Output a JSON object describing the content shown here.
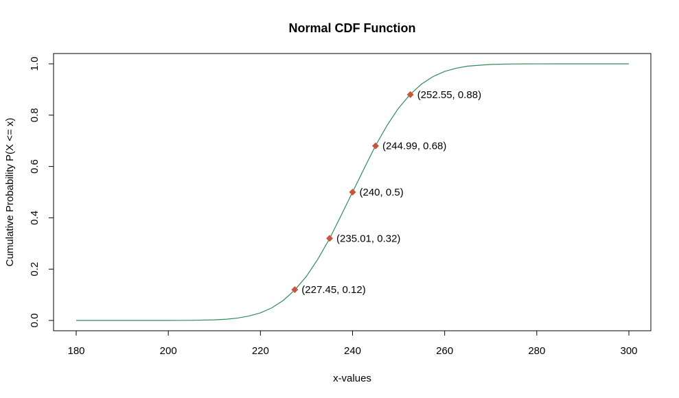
{
  "chart_data": {
    "type": "line",
    "title": "Normal CDF Function",
    "xlabel": "x-values",
    "ylabel": "Cumulative Probability P(X <= x)",
    "xlim": [
      180,
      300
    ],
    "ylim": [
      0,
      1
    ],
    "xticks": [
      180,
      200,
      220,
      240,
      260,
      280,
      300
    ],
    "yticks": [
      0.0,
      0.2,
      0.4,
      0.6,
      0.8,
      1.0
    ],
    "ytick_labels": [
      "0.0",
      "0.2",
      "0.4",
      "0.6",
      "0.8",
      "1.0"
    ],
    "grid": false,
    "distribution": {
      "mean": 240,
      "sd": 10.6
    },
    "series": [
      {
        "line_color": "#2e8b57",
        "x": [
          180,
          185,
          190,
          195,
          200,
          205,
          210,
          212.5,
          215,
          217.5,
          220,
          222.5,
          225,
          227.5,
          230,
          232.5,
          235,
          237.5,
          240,
          242.5,
          245,
          247.5,
          250,
          252.5,
          255,
          257.5,
          260,
          262.5,
          265,
          270,
          275,
          280,
          285,
          290,
          295,
          300
        ],
        "y": [
          0.0,
          0.0,
          0.0,
          0.0,
          0.0,
          0.0005,
          0.0023,
          0.0047,
          0.0092,
          0.0171,
          0.0295,
          0.0494,
          0.0786,
          0.1195,
          0.1724,
          0.2398,
          0.3185,
          0.4085,
          0.5,
          0.5915,
          0.6815,
          0.7602,
          0.8276,
          0.8805,
          0.9214,
          0.9506,
          0.9705,
          0.9829,
          0.9909,
          0.9977,
          0.9995,
          0.9999,
          1.0,
          1.0,
          1.0,
          1.0
        ]
      }
    ],
    "points": [
      {
        "x": 227.45,
        "y": 0.12,
        "label": "(227.45, 0.12)"
      },
      {
        "x": 235.01,
        "y": 0.32,
        "label": "(235.01, 0.32)"
      },
      {
        "x": 240,
        "y": 0.5,
        "label": "(240, 0.5)"
      },
      {
        "x": 244.99,
        "y": 0.68,
        "label": "(244.99, 0.68)"
      },
      {
        "x": 252.55,
        "y": 0.88,
        "label": "(252.55, 0.88)"
      }
    ],
    "point_color": "#c8553d",
    "point_marker": "diamond"
  }
}
